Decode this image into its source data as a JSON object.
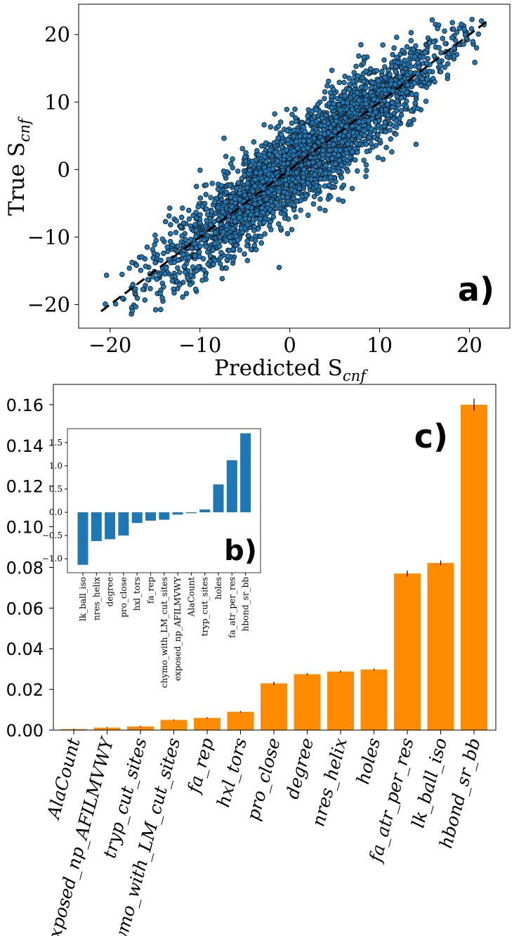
{
  "chart_data": [
    {
      "panel": "a)",
      "type": "scatter",
      "xlabel": "Predicted S",
      "xlabel_sub": "cnf",
      "ylabel": "True S",
      "ylabel_sub": "cnf",
      "xlim": [
        -23.5,
        24.5
      ],
      "ylim": [
        -23.5,
        24.5
      ],
      "xticks": [
        -20,
        -10,
        0,
        10,
        20
      ],
      "yticks": [
        -20,
        -10,
        0,
        10,
        20
      ],
      "point_color": "#1f77b4",
      "edge_color": "#0a0a0a",
      "reference_line": {
        "style": "dashed",
        "color": "#000000",
        "from": [
          -21,
          -21
        ],
        "to": [
          22,
          22
        ]
      },
      "x_range": [
        -21,
        22
      ],
      "correlation": 0.9
    },
    {
      "panel": "c)",
      "type": "bar",
      "categories": [
        "AlaCount",
        "exposed_np_AFILMVWY",
        "tryp_cut_sites",
        "chymo_with_LM_cut_sites",
        "fa_rep",
        "hxl_tors",
        "pro_close",
        "degree",
        "nres_helix",
        "holes",
        "fa_atr_per_res",
        "lk_ball_iso",
        "hbond_sr_bb"
      ],
      "values": [
        0.0005,
        0.0012,
        0.0018,
        0.005,
        0.006,
        0.009,
        0.023,
        0.0275,
        0.0288,
        0.0298,
        0.077,
        0.0822,
        0.16
      ],
      "errors": [
        0.0002,
        0.0003,
        0.0003,
        0.0003,
        0.0003,
        0.0004,
        0.0008,
        0.0005,
        0.0005,
        0.0005,
        0.0015,
        0.0012,
        0.003
      ],
      "ylim": [
        0,
        0.17
      ],
      "yticks": [
        "0.00",
        "0.02",
        "0.04",
        "0.06",
        "0.08",
        "0.10",
        "0.12",
        "0.14",
        "0.16"
      ],
      "bar_color": "#ff8c00"
    },
    {
      "panel": "b)",
      "type": "bar",
      "categories": [
        "lk_ball_iso",
        "nres_helix",
        "degree",
        "pro_close",
        "hxl_tors",
        "fa_rep",
        "chymo_with_LM_cut_sites",
        "exposed_np_AFILMVWY",
        "AlaCount",
        "tryp_cut_sites",
        "holes",
        "fa_atr_per_res",
        "hbond_sr_bb"
      ],
      "values": [
        -1.13,
        -0.62,
        -0.58,
        -0.5,
        -0.23,
        -0.18,
        -0.16,
        -0.05,
        -0.02,
        0.06,
        0.6,
        1.12,
        1.7
      ],
      "ylim": [
        -1.3,
        1.8
      ],
      "yticks": [
        "-1.0",
        "-0.5",
        "0.0",
        "0.5",
        "1.0",
        "1.5"
      ],
      "bar_color": "#1f77b4"
    }
  ]
}
